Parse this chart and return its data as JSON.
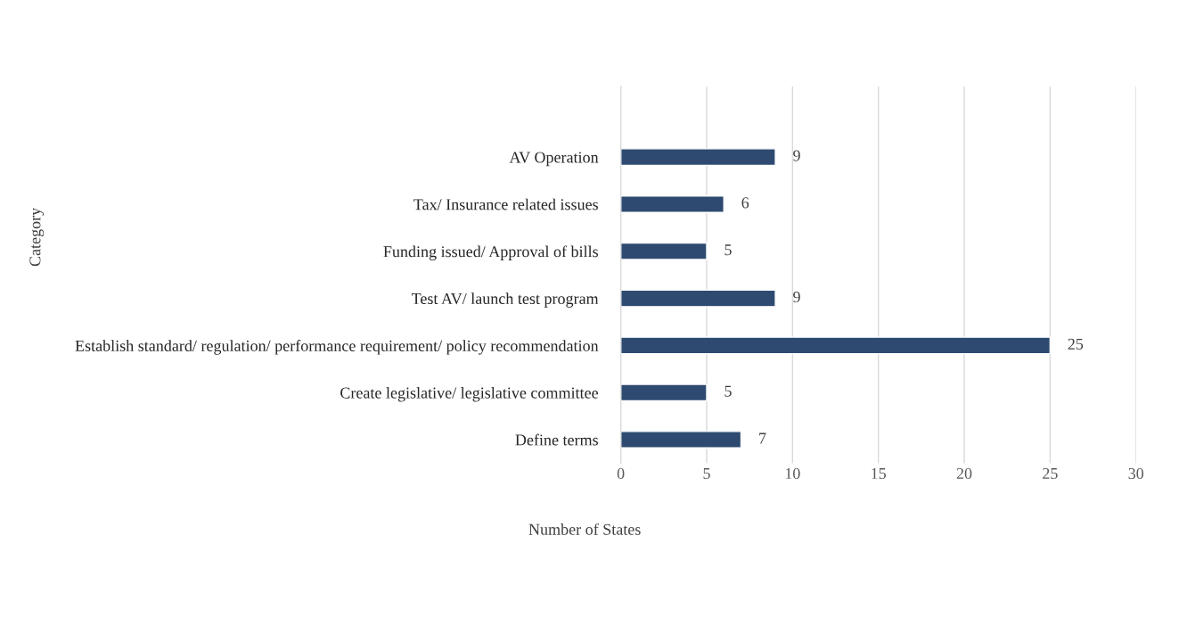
{
  "chart_data": {
    "type": "bar",
    "orientation": "horizontal",
    "categories": [
      "AV Operation",
      "Tax/ Insurance related issues",
      "Funding issued/ Approval of bills",
      "Test AV/ launch test program",
      "Establish standard/ regulation/ performance requirement/ policy recommendation",
      "Create legislative/ legislative committee",
      "Define terms"
    ],
    "values": [
      9,
      6,
      5,
      9,
      25,
      5,
      7
    ],
    "color": "#2e4a70",
    "xlim": [
      0,
      30
    ],
    "xticks": [
      0,
      5,
      10,
      15,
      20,
      25,
      30
    ],
    "xlabel": "Number of States",
    "ylabel": "Category",
    "grid": "x",
    "data_labels": true,
    "legend": false
  }
}
